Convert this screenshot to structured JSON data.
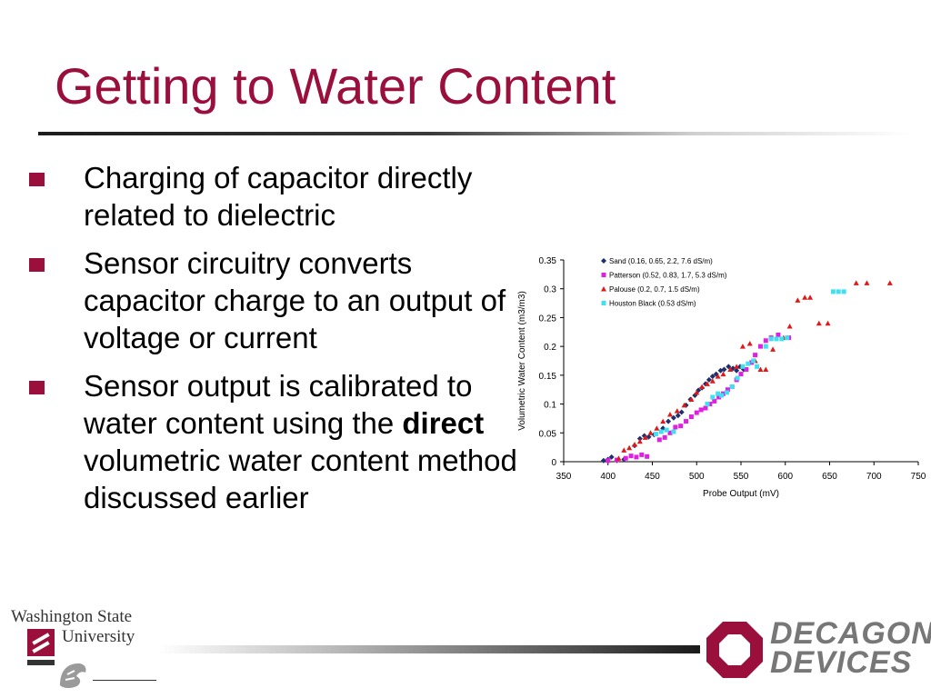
{
  "slide": {
    "title": "Getting to Water Content",
    "bullets": [
      {
        "text": "Charging of capacitor directly related to dielectric"
      },
      {
        "text": "Sensor circuitry converts capacitor charge to an output of voltage or current"
      },
      {
        "pre": "Sensor output is calibrated to water content using the ",
        "bold": "direct",
        "post": " volumetric water content method discussed earlier"
      }
    ]
  },
  "logos": {
    "wsu_line1": "Washington State",
    "wsu_line2": "University",
    "decagon_line1": "DECAGON",
    "decagon_line2": "DEVICES"
  },
  "colors": {
    "title": "#9a0f3c",
    "sand": "#1f2f6e",
    "patterson": "#e020e0",
    "palouse": "#e01818",
    "houston_black": "#40e0f0"
  },
  "chart_data": {
    "type": "scatter",
    "xlabel": "Probe Output (mV)",
    "ylabel": "Volumetric Water Content (m3/m3)",
    "xlim": [
      350,
      750
    ],
    "ylim": [
      0,
      0.35
    ],
    "xticks": [
      350,
      400,
      450,
      500,
      550,
      600,
      650,
      700,
      750
    ],
    "yticks": [
      0,
      0.05,
      0.1,
      0.15,
      0.2,
      0.25,
      0.3,
      0.35
    ],
    "ytick_labels": [
      "0",
      "0.05",
      "0.1",
      "0.15",
      "0.2",
      "0.25",
      "0.3",
      "0.35"
    ],
    "grid": false,
    "legend_position": "top-left",
    "series": [
      {
        "name": "Sand (0.16, 0.65, 2.2, 7.6 dS/m)",
        "marker": "diamond",
        "color": "#1f2f6e",
        "points": [
          [
            395,
            0.002
          ],
          [
            400,
            0.004
          ],
          [
            404,
            0.008
          ],
          [
            410,
            0.002
          ],
          [
            418,
            0.004
          ],
          [
            430,
            0.028
          ],
          [
            436,
            0.04
          ],
          [
            441,
            0.045
          ],
          [
            446,
            0.043
          ],
          [
            452,
            0.047
          ],
          [
            462,
            0.058
          ],
          [
            468,
            0.07
          ],
          [
            474,
            0.076
          ],
          [
            479,
            0.08
          ],
          [
            483,
            0.086
          ],
          [
            488,
            0.098
          ],
          [
            493,
            0.108
          ],
          [
            498,
            0.115
          ],
          [
            502,
            0.124
          ],
          [
            506,
            0.128
          ],
          [
            510,
            0.135
          ],
          [
            514,
            0.142
          ],
          [
            518,
            0.148
          ],
          [
            522,
            0.152
          ],
          [
            527,
            0.158
          ],
          [
            531,
            0.16
          ],
          [
            536,
            0.165
          ],
          [
            541,
            0.162
          ],
          [
            545,
            0.158
          ],
          [
            549,
            0.165
          ],
          [
            553,
            0.16
          ]
        ]
      },
      {
        "name": "Patterson (0.52, 0.83, 1.7, 5.3 dS/m)",
        "marker": "square",
        "color": "#e020e0",
        "points": [
          [
            400,
            0.002
          ],
          [
            410,
            0.003
          ],
          [
            420,
            0.006
          ],
          [
            426,
            0.01
          ],
          [
            432,
            0.008
          ],
          [
            438,
            0.012
          ],
          [
            444,
            0.009
          ],
          [
            458,
            0.038
          ],
          [
            464,
            0.042
          ],
          [
            470,
            0.05
          ],
          [
            476,
            0.06
          ],
          [
            482,
            0.062
          ],
          [
            488,
            0.07
          ],
          [
            494,
            0.078
          ],
          [
            500,
            0.085
          ],
          [
            505,
            0.09
          ],
          [
            510,
            0.093
          ],
          [
            515,
            0.1
          ],
          [
            520,
            0.105
          ],
          [
            525,
            0.112
          ],
          [
            530,
            0.118
          ],
          [
            535,
            0.125
          ],
          [
            540,
            0.13
          ],
          [
            545,
            0.142
          ],
          [
            550,
            0.152
          ],
          [
            556,
            0.16
          ],
          [
            562,
            0.172
          ],
          [
            566,
            0.185
          ],
          [
            572,
            0.2
          ],
          [
            578,
            0.21
          ],
          [
            584,
            0.215
          ],
          [
            592,
            0.22
          ],
          [
            604,
            0.215
          ]
        ]
      },
      {
        "name": "Palouse (0.2, 0.7, 1.5 dS/m)",
        "marker": "triangle",
        "color": "#e01818",
        "points": [
          [
            412,
            0.006
          ],
          [
            418,
            0.02
          ],
          [
            424,
            0.024
          ],
          [
            430,
            0.03
          ],
          [
            436,
            0.035
          ],
          [
            442,
            0.042
          ],
          [
            448,
            0.05
          ],
          [
            455,
            0.058
          ],
          [
            462,
            0.07
          ],
          [
            470,
            0.082
          ],
          [
            478,
            0.088
          ],
          [
            486,
            0.098
          ],
          [
            494,
            0.108
          ],
          [
            500,
            0.12
          ],
          [
            506,
            0.13
          ],
          [
            512,
            0.135
          ],
          [
            518,
            0.14
          ],
          [
            524,
            0.148
          ],
          [
            530,
            0.152
          ],
          [
            538,
            0.16
          ],
          [
            545,
            0.165
          ],
          [
            552,
            0.2
          ],
          [
            560,
            0.205
          ],
          [
            566,
            0.175
          ],
          [
            572,
            0.16
          ],
          [
            578,
            0.16
          ],
          [
            586,
            0.195
          ],
          [
            598,
            0.215
          ],
          [
            605,
            0.235
          ],
          [
            614,
            0.28
          ],
          [
            622,
            0.285
          ],
          [
            628,
            0.285
          ],
          [
            638,
            0.24
          ],
          [
            648,
            0.24
          ],
          [
            680,
            0.31
          ],
          [
            692,
            0.31
          ],
          [
            718,
            0.31
          ]
        ]
      },
      {
        "name": "Houston Black (0.53 dS/m)",
        "marker": "square",
        "color": "#40e0f0",
        "points": [
          [
            454,
            0.048
          ],
          [
            460,
            0.052
          ],
          [
            466,
            0.055
          ],
          [
            474,
            0.052
          ],
          [
            512,
            0.1
          ],
          [
            518,
            0.112
          ],
          [
            524,
            0.118
          ],
          [
            528,
            0.115
          ],
          [
            534,
            0.12
          ],
          [
            540,
            0.13
          ],
          [
            546,
            0.145
          ],
          [
            552,
            0.165
          ],
          [
            558,
            0.17
          ],
          [
            564,
            0.175
          ],
          [
            568,
            0.165
          ],
          [
            578,
            0.2
          ],
          [
            584,
            0.213
          ],
          [
            590,
            0.213
          ],
          [
            596,
            0.213
          ],
          [
            602,
            0.215
          ],
          [
            654,
            0.295
          ],
          [
            660,
            0.295
          ],
          [
            666,
            0.295
          ]
        ]
      }
    ]
  }
}
